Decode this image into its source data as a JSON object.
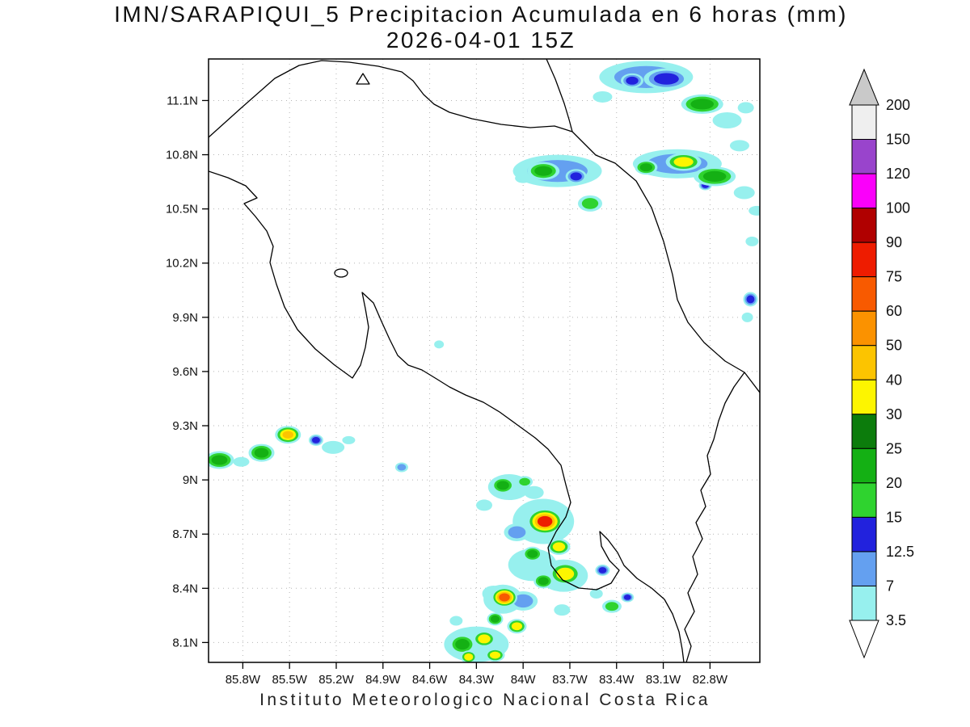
{
  "title": {
    "line1": "IMN/SARAPIQUI_5 Precipitacion Acumulada en 6 horas (mm)",
    "line2": "2026-04-01 15Z"
  },
  "caption": "Instituto Meteorologico Nacional Costa Rica",
  "chart_data": {
    "type": "heatmap",
    "title": "IMN/SARAPIQUI_5 Precipitacion Acumulada en 6 horas (mm)",
    "subtitle": "2026-04-01 15Z",
    "units": "mm",
    "extent": {
      "lon_west": 86.02,
      "lon_east": 82.48,
      "lat_south": 7.99,
      "lat_north": 11.33
    },
    "x_ticks": [
      {
        "value": 85.8,
        "label": "85.8W"
      },
      {
        "value": 85.5,
        "label": "85.5W"
      },
      {
        "value": 85.2,
        "label": "85.2W"
      },
      {
        "value": 84.9,
        "label": "84.9W"
      },
      {
        "value": 84.6,
        "label": "84.6W"
      },
      {
        "value": 84.3,
        "label": "84.3W"
      },
      {
        "value": 84.0,
        "label": "84W"
      },
      {
        "value": 83.7,
        "label": "83.7W"
      },
      {
        "value": 83.4,
        "label": "83.4W"
      },
      {
        "value": 83.1,
        "label": "83.1W"
      },
      {
        "value": 82.8,
        "label": "82.8W"
      }
    ],
    "y_ticks": [
      {
        "value": 11.1,
        "label": "11.1N"
      },
      {
        "value": 10.8,
        "label": "10.8N"
      },
      {
        "value": 10.5,
        "label": "10.5N"
      },
      {
        "value": 10.2,
        "label": "10.2N"
      },
      {
        "value": 9.9,
        "label": "9.9N"
      },
      {
        "value": 9.6,
        "label": "9.6N"
      },
      {
        "value": 9.3,
        "label": "9.3N"
      },
      {
        "value": 9.0,
        "label": "9N"
      },
      {
        "value": 8.7,
        "label": "8.7N"
      },
      {
        "value": 8.4,
        "label": "8.4N"
      },
      {
        "value": 8.1,
        "label": "8.1N"
      }
    ],
    "palette": [
      {
        "level": "3.5",
        "color": "#97f0ee"
      },
      {
        "level": "7",
        "color": "#64a0f0"
      },
      {
        "level": "12.5",
        "color": "#2222dd"
      },
      {
        "level": "15",
        "color": "#2fd32f"
      },
      {
        "level": "20",
        "color": "#14b014"
      },
      {
        "level": "25",
        "color": "#0c7c0c"
      },
      {
        "level": "30",
        "color": "#fdf500"
      },
      {
        "level": "40",
        "color": "#fcc400"
      },
      {
        "level": "50",
        "color": "#fb9200"
      },
      {
        "level": "60",
        "color": "#f85a00"
      },
      {
        "level": "75",
        "color": "#ee1c00"
      },
      {
        "level": "90",
        "color": "#b00000"
      },
      {
        "level": "100",
        "color": "#fa00fa"
      },
      {
        "level": "120",
        "color": "#9944cc"
      },
      {
        "level": "150",
        "color": "#efefef"
      }
    ],
    "colorbar": {
      "labels_top_to_bottom": [
        "200",
        "150",
        "120",
        "100",
        "90",
        "75",
        "60",
        "50",
        "40",
        "30",
        "25",
        "20",
        "15",
        "12.5",
        "7",
        "3.5"
      ],
      "arrow_top_color": "#c9c9c9",
      "arrow_bottom_color": "#ffffff"
    },
    "cells": [
      {
        "lon": 83.21,
        "lat": 11.23,
        "rx": 58,
        "ry": 20,
        "level": "7"
      },
      {
        "lon": 83.08,
        "lat": 11.22,
        "rx": 28,
        "ry": 13,
        "level": "12.5"
      },
      {
        "lon": 83.3,
        "lat": 11.21,
        "rx": 14,
        "ry": 9,
        "level": "12.5"
      },
      {
        "lon": 82.85,
        "lat": 11.08,
        "rx": 26,
        "ry": 12,
        "level": "20"
      },
      {
        "lon": 82.69,
        "lat": 10.99,
        "rx": 18,
        "ry": 10,
        "level": "3.5"
      },
      {
        "lon": 82.57,
        "lat": 11.06,
        "rx": 10,
        "ry": 7,
        "level": "3.5"
      },
      {
        "lon": 83.49,
        "lat": 11.12,
        "rx": 12,
        "ry": 7,
        "level": "3.5"
      },
      {
        "lon": 83.78,
        "lat": 10.71,
        "rx": 55,
        "ry": 20,
        "level": "7"
      },
      {
        "lon": 83.87,
        "lat": 10.71,
        "rx": 20,
        "ry": 11,
        "level": "20"
      },
      {
        "lon": 83.66,
        "lat": 10.68,
        "rx": 13,
        "ry": 9,
        "level": "12.5"
      },
      {
        "lon": 83.57,
        "lat": 10.53,
        "rx": 15,
        "ry": 10,
        "level": "15"
      },
      {
        "lon": 84.0,
        "lat": 10.67,
        "rx": 10,
        "ry": 6,
        "level": "3.5"
      },
      {
        "lon": 83.01,
        "lat": 10.75,
        "rx": 55,
        "ry": 18,
        "level": "7"
      },
      {
        "lon": 82.97,
        "lat": 10.76,
        "rx": 22,
        "ry": 11,
        "level": "30"
      },
      {
        "lon": 83.21,
        "lat": 10.73,
        "rx": 14,
        "ry": 9,
        "level": "20"
      },
      {
        "lon": 82.77,
        "lat": 10.68,
        "rx": 26,
        "ry": 12,
        "level": "20"
      },
      {
        "lon": 82.83,
        "lat": 10.63,
        "rx": 8,
        "ry": 6,
        "level": "12.5"
      },
      {
        "lon": 82.58,
        "lat": 10.59,
        "rx": 13,
        "ry": 8,
        "level": "3.5"
      },
      {
        "lon": 82.5,
        "lat": 10.49,
        "rx": 10,
        "ry": 6,
        "level": "3.5"
      },
      {
        "lon": 82.61,
        "lat": 10.85,
        "rx": 12,
        "ry": 7,
        "level": "3.5"
      },
      {
        "lon": 82.53,
        "lat": 10.32,
        "rx": 8,
        "ry": 6,
        "level": "3.5"
      },
      {
        "lon": 82.54,
        "lat": 10.0,
        "rx": 9,
        "ry": 9,
        "level": "12.5"
      },
      {
        "lon": 82.56,
        "lat": 9.9,
        "rx": 7,
        "ry": 6,
        "level": "3.5"
      },
      {
        "lon": 84.54,
        "lat": 9.75,
        "rx": 6,
        "ry": 5,
        "level": "3.5"
      },
      {
        "lon": 85.95,
        "lat": 9.11,
        "rx": 18,
        "ry": 11,
        "level": "20"
      },
      {
        "lon": 85.81,
        "lat": 9.1,
        "rx": 10,
        "ry": 6,
        "level": "3.5"
      },
      {
        "lon": 85.68,
        "lat": 9.15,
        "rx": 16,
        "ry": 11,
        "level": "20"
      },
      {
        "lon": 85.51,
        "lat": 9.25,
        "rx": 16,
        "ry": 11,
        "level": "40"
      },
      {
        "lon": 85.33,
        "lat": 9.22,
        "rx": 9,
        "ry": 7,
        "level": "12.5"
      },
      {
        "lon": 85.22,
        "lat": 9.18,
        "rx": 14,
        "ry": 8,
        "level": "3.5"
      },
      {
        "lon": 85.12,
        "lat": 9.22,
        "rx": 8,
        "ry": 5,
        "level": "3.5"
      },
      {
        "lon": 84.78,
        "lat": 9.07,
        "rx": 8,
        "ry": 6,
        "level": "7"
      },
      {
        "lon": 84.09,
        "lat": 8.96,
        "rx": 26,
        "ry": 16,
        "level": "3.5"
      },
      {
        "lon": 84.13,
        "lat": 8.97,
        "rx": 14,
        "ry": 10,
        "level": "20"
      },
      {
        "lon": 83.99,
        "lat": 8.99,
        "rx": 10,
        "ry": 7,
        "level": "15"
      },
      {
        "lon": 83.93,
        "lat": 8.93,
        "rx": 12,
        "ry": 8,
        "level": "3.5"
      },
      {
        "lon": 84.25,
        "lat": 8.86,
        "rx": 10,
        "ry": 7,
        "level": "3.5"
      },
      {
        "lon": 83.87,
        "lat": 8.77,
        "rx": 38,
        "ry": 28,
        "level": "3.5"
      },
      {
        "lon": 84.04,
        "lat": 8.71,
        "rx": 16,
        "ry": 11,
        "level": "7"
      },
      {
        "lon": 83.86,
        "lat": 8.77,
        "rx": 22,
        "ry": 16,
        "level": "75"
      },
      {
        "lon": 83.77,
        "lat": 8.63,
        "rx": 14,
        "ry": 10,
        "level": "30"
      },
      {
        "lon": 83.94,
        "lat": 8.59,
        "rx": 12,
        "ry": 9,
        "level": "20"
      },
      {
        "lon": 83.94,
        "lat": 8.53,
        "rx": 30,
        "ry": 20,
        "level": "3.5"
      },
      {
        "lon": 83.74,
        "lat": 8.47,
        "rx": 30,
        "ry": 20,
        "level": "3.5"
      },
      {
        "lon": 83.73,
        "lat": 8.48,
        "rx": 20,
        "ry": 14,
        "level": "30"
      },
      {
        "lon": 83.87,
        "lat": 8.44,
        "rx": 12,
        "ry": 9,
        "level": "20"
      },
      {
        "lon": 83.49,
        "lat": 8.5,
        "rx": 9,
        "ry": 7,
        "level": "12.5"
      },
      {
        "lon": 83.53,
        "lat": 8.37,
        "rx": 8,
        "ry": 6,
        "level": "3.5"
      },
      {
        "lon": 83.43,
        "lat": 8.3,
        "rx": 12,
        "ry": 8,
        "level": "15"
      },
      {
        "lon": 83.33,
        "lat": 8.35,
        "rx": 8,
        "ry": 6,
        "level": "12.5"
      },
      {
        "lon": 83.75,
        "lat": 8.28,
        "rx": 10,
        "ry": 7,
        "level": "3.5"
      },
      {
        "lon": 84.0,
        "lat": 8.33,
        "rx": 18,
        "ry": 12,
        "level": "7"
      },
      {
        "lon": 84.19,
        "lat": 8.37,
        "rx": 14,
        "ry": 10,
        "level": "3.5"
      },
      {
        "lon": 84.13,
        "lat": 8.34,
        "rx": 24,
        "ry": 18,
        "level": "3.5"
      },
      {
        "lon": 84.12,
        "lat": 8.35,
        "rx": 16,
        "ry": 12,
        "level": "60"
      },
      {
        "lon": 84.18,
        "lat": 8.23,
        "rx": 10,
        "ry": 8,
        "level": "20"
      },
      {
        "lon": 84.04,
        "lat": 8.19,
        "rx": 12,
        "ry": 9,
        "level": "30"
      },
      {
        "lon": 84.43,
        "lat": 8.22,
        "rx": 8,
        "ry": 6,
        "level": "3.5"
      },
      {
        "lon": 84.3,
        "lat": 8.09,
        "rx": 40,
        "ry": 22,
        "level": "3.5"
      },
      {
        "lon": 84.25,
        "lat": 8.12,
        "rx": 14,
        "ry": 10,
        "level": "30"
      },
      {
        "lon": 84.39,
        "lat": 8.09,
        "rx": 16,
        "ry": 12,
        "level": "20"
      },
      {
        "lon": 84.35,
        "lat": 8.02,
        "rx": 10,
        "ry": 8,
        "level": "30"
      },
      {
        "lon": 84.18,
        "lat": 8.03,
        "rx": 12,
        "ry": 8,
        "level": "30"
      }
    ]
  }
}
